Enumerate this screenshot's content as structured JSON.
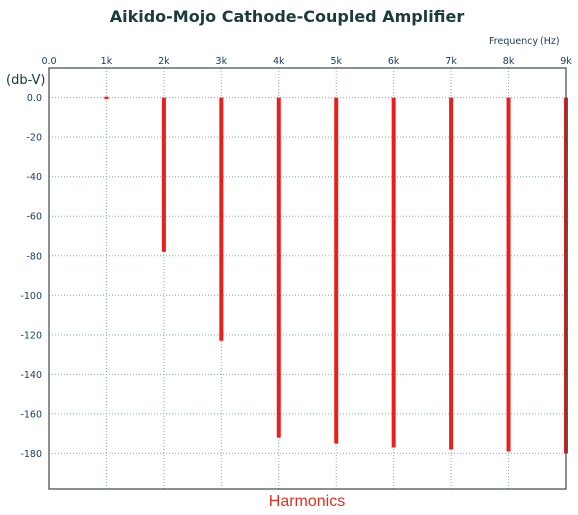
{
  "chart_data": {
    "type": "bar",
    "title": "Aikido-Mojo Cathode-Coupled Amplifier",
    "x_unit_label": "Frequency",
    "x_unit": "(Hz)",
    "ylabel": "(db-V)",
    "xlabel": "Harmonics",
    "x_tick_labels": [
      "0.0",
      "1k",
      "2k",
      "3k",
      "4k",
      "5k",
      "6k",
      "7k",
      "8k",
      "9k"
    ],
    "x_ticks": [
      0,
      1000,
      2000,
      3000,
      4000,
      5000,
      6000,
      7000,
      8000,
      9000
    ],
    "y_tick_labels": [
      "0.0",
      "-20",
      "-40",
      "-60",
      "-80",
      "-100",
      "-120",
      "-140",
      "-160",
      "-180"
    ],
    "y_ticks": [
      0,
      -20,
      -40,
      -60,
      -80,
      -100,
      -120,
      -140,
      -160,
      -180
    ],
    "xlim": [
      0,
      9000
    ],
    "ylim": [
      -198,
      15
    ],
    "x_axis_position": "top",
    "grid": true,
    "baseline": 0,
    "points": [
      {
        "x": 1000,
        "y": 0
      },
      {
        "x": 2000,
        "y": -78
      },
      {
        "x": 3000,
        "y": -123
      },
      {
        "x": 4000,
        "y": -172
      },
      {
        "x": 5000,
        "y": -175
      },
      {
        "x": 6000,
        "y": -177
      },
      {
        "x": 7000,
        "y": -178
      },
      {
        "x": 8000,
        "y": -179
      },
      {
        "x": 9000,
        "y": -180
      }
    ],
    "colors": {
      "title": "#1c3b3b",
      "tick_text": "#1a3a5a",
      "axis_unit_text": "#1a3a5a",
      "ylabel_text": "#1a3a3a",
      "xlabel_text": "#e03020",
      "grid": "#7fb0b0",
      "frame": "#3a4a4a",
      "bar": "#e8201c"
    }
  }
}
